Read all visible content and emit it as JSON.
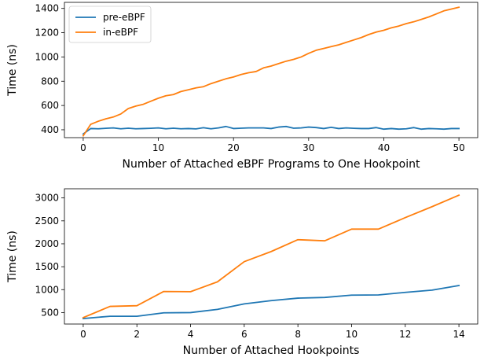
{
  "colors": {
    "pre": "#1f77b4",
    "in": "#ff7f0e"
  },
  "chart_data": [
    {
      "type": "line",
      "xlabel": "Number of Attached eBPF Programs to One Hookpoint",
      "ylabel": "Time (ns)",
      "xlim": [
        -2.5,
        52.5
      ],
      "ylim": [
        335,
        1450
      ],
      "xticks": [
        0,
        10,
        20,
        30,
        40,
        50
      ],
      "yticks": [
        400,
        600,
        800,
        1000,
        1200,
        1400
      ],
      "legend": "top-left",
      "x": [
        0,
        1,
        2,
        3,
        4,
        5,
        6,
        7,
        8,
        9,
        10,
        11,
        12,
        13,
        14,
        15,
        16,
        17,
        18,
        19,
        20,
        21,
        22,
        23,
        24,
        25,
        26,
        27,
        28,
        29,
        30,
        31,
        32,
        33,
        34,
        35,
        36,
        37,
        38,
        39,
        40,
        41,
        42,
        43,
        44,
        45,
        46,
        47,
        48,
        49,
        50
      ],
      "series": [
        {
          "name": "pre-eBPF",
          "color_key": "pre",
          "values": [
            365,
            410,
            408,
            412,
            415,
            408,
            413,
            408,
            410,
            412,
            415,
            408,
            413,
            408,
            410,
            407,
            417,
            408,
            415,
            427,
            410,
            413,
            415,
            415,
            415,
            410,
            422,
            427,
            413,
            415,
            422,
            418,
            410,
            420,
            410,
            415,
            412,
            410,
            410,
            418,
            405,
            410,
            405,
            408,
            418,
            405,
            410,
            408,
            405,
            410,
            410
          ]
        },
        {
          "name": "in-eBPF",
          "color_key": "in",
          "values": [
            350,
            445,
            470,
            490,
            505,
            530,
            575,
            595,
            610,
            635,
            660,
            680,
            690,
            715,
            730,
            745,
            755,
            780,
            800,
            820,
            835,
            855,
            870,
            880,
            910,
            925,
            945,
            965,
            980,
            1000,
            1030,
            1055,
            1070,
            1085,
            1100,
            1120,
            1140,
            1160,
            1185,
            1205,
            1220,
            1240,
            1255,
            1275,
            1290,
            1310,
            1330,
            1355,
            1380,
            1395,
            1410
          ]
        }
      ]
    },
    {
      "type": "line",
      "xlabel": "Number of Attached Hookpoints",
      "ylabel": "Time (ns)",
      "xlim": [
        -0.7,
        14.7
      ],
      "ylim": [
        250,
        3200
      ],
      "xticks": [
        0,
        2,
        4,
        6,
        8,
        10,
        12,
        14
      ],
      "yticks": [
        500,
        1000,
        1500,
        2000,
        2500,
        3000
      ],
      "x": [
        0,
        1,
        2,
        3,
        4,
        5,
        6,
        7,
        8,
        9,
        10,
        11,
        12,
        13,
        14
      ],
      "series": [
        {
          "name": "pre-eBPF",
          "color_key": "pre",
          "values": [
            370,
            420,
            420,
            495,
            500,
            570,
            690,
            760,
            815,
            830,
            880,
            885,
            940,
            990,
            1090
          ]
        },
        {
          "name": "in-eBPF",
          "color_key": "in",
          "values": [
            390,
            635,
            650,
            960,
            955,
            1170,
            1610,
            1830,
            2090,
            2065,
            2320,
            2320,
            2570,
            2810,
            3060
          ]
        }
      ]
    }
  ]
}
